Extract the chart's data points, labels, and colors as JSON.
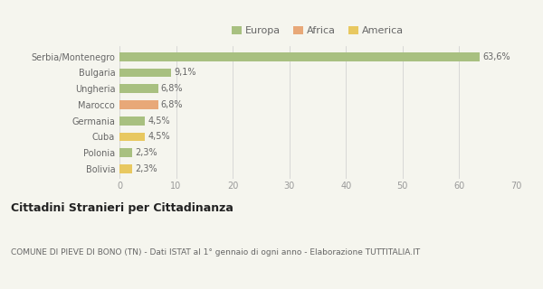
{
  "categories": [
    "Serbia/Montenegro",
    "Bulgaria",
    "Ungheria",
    "Marocco",
    "Germania",
    "Cuba",
    "Polonia",
    "Bolivia"
  ],
  "values": [
    63.6,
    9.1,
    6.8,
    6.8,
    4.5,
    4.5,
    2.3,
    2.3
  ],
  "labels": [
    "63,6%",
    "9,1%",
    "6,8%",
    "6,8%",
    "4,5%",
    "4,5%",
    "2,3%",
    "2,3%"
  ],
  "colors": [
    "#a8c080",
    "#a8c080",
    "#a8c080",
    "#e8a878",
    "#a8c080",
    "#e8c860",
    "#a8c080",
    "#e8c860"
  ],
  "continent": [
    "Europa",
    "Europa",
    "Europa",
    "Africa",
    "Europa",
    "America",
    "Europa",
    "America"
  ],
  "legend": [
    {
      "label": "Europa",
      "color": "#a8c080"
    },
    {
      "label": "Africa",
      "color": "#e8a878"
    },
    {
      "label": "America",
      "color": "#e8c860"
    }
  ],
  "xlim": [
    0,
    70
  ],
  "xticks": [
    0,
    10,
    20,
    30,
    40,
    50,
    60,
    70
  ],
  "title": "Cittadini Stranieri per Cittadinanza",
  "subtitle": "COMUNE DI PIEVE DI BONO (TN) - Dati ISTAT al 1° gennaio di ogni anno - Elaborazione TUTTITALIA.IT",
  "bg_color": "#f5f5ee",
  "bar_height": 0.55,
  "title_fontsize": 9,
  "subtitle_fontsize": 6.5,
  "tick_fontsize": 7,
  "label_fontsize": 7,
  "legend_fontsize": 8
}
